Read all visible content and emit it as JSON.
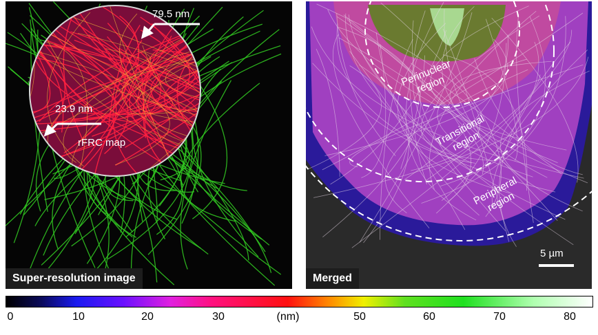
{
  "left_panel": {
    "label": "Super-resolution image",
    "annotation_top": "79.5 nm",
    "annotation_bottom": "23.9 nm",
    "inset_label": "rFRC map"
  },
  "right_panel": {
    "label": "Merged",
    "regions": [
      "Perinuclear\nregion",
      "Transitional\nregion",
      "Peripheral\nregion"
    ],
    "scale_bar": "5 µm"
  },
  "colorbar": {
    "unit": "(nm)",
    "ticks": [
      "0",
      "10",
      "20",
      "30",
      "50",
      "60",
      "70",
      "80"
    ]
  },
  "colors": {
    "filament": "#33cc22",
    "hot": "#ff2040",
    "magenta": "#d040c0"
  }
}
